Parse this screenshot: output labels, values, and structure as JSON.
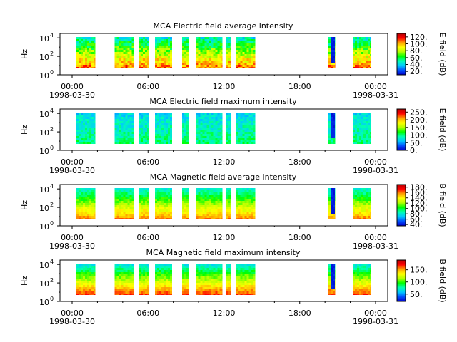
{
  "colors": {
    "colormap": [
      "#0000c8",
      "#0050ff",
      "#00c8ff",
      "#00ffb4",
      "#00ff00",
      "#b4ff00",
      "#ffff00",
      "#ffa000",
      "#ff0000",
      "#b40000"
    ]
  },
  "chart_data": [
    {
      "type": "heatmap",
      "title": "MCA  Electric field average intensity",
      "ylabel": "Hz",
      "y_ticks": [
        "10",
        "10",
        "10"
      ],
      "y_tick_exponents": [
        "0",
        "2",
        "4"
      ],
      "y_scale": "log",
      "ylim": [
        1,
        30000
      ],
      "x_ticks": [
        "00:00",
        "06:00",
        "12:00",
        "18:00",
        "00:00"
      ],
      "x_dates": [
        "1998-03-30",
        "1998-03-31"
      ],
      "xlim": [
        "1998-03-30 00:00",
        "1998-03-31 00:00"
      ],
      "colorbar": {
        "label": "E field (dB)",
        "ticks": [
          "20.",
          "40.",
          "60.",
          "80.",
          "100.",
          "120."
        ],
        "range": [
          10,
          130
        ]
      },
      "data_intervals_hours": [
        [
          1.2,
          2.6
        ],
        [
          4.0,
          5.4
        ],
        [
          5.75,
          6.5
        ],
        [
          6.95,
          8.2
        ],
        [
          8.95,
          9.45
        ],
        [
          9.95,
          11.9
        ],
        [
          12.15,
          12.5
        ],
        [
          12.9,
          14.3
        ],
        [
          19.65,
          20.15
        ],
        [
          21.45,
          22.75
        ]
      ],
      "description_levels": "mid-frequency dominated, high intensity at low frequencies"
    },
    {
      "type": "heatmap",
      "title": "MCA  Electric field maximum intensity",
      "ylabel": "Hz",
      "y_ticks": [
        "10",
        "10",
        "10"
      ],
      "y_tick_exponents": [
        "0",
        "2",
        "4"
      ],
      "y_scale": "log",
      "ylim": [
        1,
        30000
      ],
      "x_ticks": [
        "00:00",
        "06:00",
        "12:00",
        "18:00",
        "00:00"
      ],
      "x_dates": [
        "1998-03-30",
        "1998-03-31"
      ],
      "xlim": [
        "1998-03-30 00:00",
        "1998-03-31 00:00"
      ],
      "colorbar": {
        "label": "E field (dB)",
        "ticks": [
          "0.",
          "50.",
          "100.",
          "150.",
          "200.",
          "250."
        ],
        "range": [
          0,
          270
        ]
      },
      "data_intervals_hours": [
        [
          1.2,
          2.6
        ],
        [
          4.0,
          5.4
        ],
        [
          5.75,
          6.5
        ],
        [
          6.95,
          8.2
        ],
        [
          8.95,
          9.45
        ],
        [
          9.95,
          11.9
        ],
        [
          12.15,
          12.5
        ],
        [
          12.9,
          14.3
        ],
        [
          19.65,
          20.15
        ],
        [
          21.45,
          22.75
        ]
      ]
    },
    {
      "type": "heatmap",
      "title": "MCA  Magnetic field average intensity",
      "ylabel": "Hz",
      "y_ticks": [
        "10",
        "10",
        "10"
      ],
      "y_tick_exponents": [
        "0",
        "2",
        "4"
      ],
      "y_scale": "log",
      "ylim": [
        1,
        30000
      ],
      "x_ticks": [
        "00:00",
        "06:00",
        "12:00",
        "18:00",
        "00:00"
      ],
      "x_dates": [
        "1998-03-30",
        "1998-03-31"
      ],
      "xlim": [
        "1998-03-30 00:00",
        "1998-03-31 00:00"
      ],
      "colorbar": {
        "label": "B field (dB)",
        "ticks": [
          "40.",
          "60.",
          "80.",
          "100.",
          "120.",
          "140.",
          "160.",
          "180."
        ],
        "range": [
          35,
          190
        ]
      },
      "data_intervals_hours": [
        [
          1.2,
          2.6
        ],
        [
          4.0,
          5.4
        ],
        [
          5.75,
          6.5
        ],
        [
          6.95,
          8.2
        ],
        [
          8.95,
          9.45
        ],
        [
          9.95,
          11.9
        ],
        [
          12.15,
          12.5
        ],
        [
          12.9,
          14.3
        ],
        [
          19.65,
          20.15
        ],
        [
          21.45,
          22.75
        ]
      ]
    },
    {
      "type": "heatmap",
      "title": "MCA  Magnetic field maximum intensity",
      "ylabel": "Hz",
      "y_ticks": [
        "10",
        "10",
        "10"
      ],
      "y_tick_exponents": [
        "0",
        "2",
        "4"
      ],
      "y_scale": "log",
      "ylim": [
        1,
        30000
      ],
      "x_ticks": [
        "00:00",
        "06:00",
        "12:00",
        "18:00",
        "00:00"
      ],
      "x_dates": [
        "1998-03-30",
        "1998-03-31"
      ],
      "xlim": [
        "1998-03-30 00:00",
        "1998-03-31 00:00"
      ],
      "colorbar": {
        "label": "B field (dB)",
        "ticks": [
          "50.",
          "100.",
          "150."
        ],
        "range": [
          20,
          190
        ]
      },
      "data_intervals_hours": [
        [
          1.2,
          2.6
        ],
        [
          4.0,
          5.4
        ],
        [
          5.75,
          6.5
        ],
        [
          6.95,
          8.2
        ],
        [
          8.95,
          9.45
        ],
        [
          9.95,
          11.9
        ],
        [
          12.15,
          12.5
        ],
        [
          12.9,
          14.3
        ],
        [
          19.65,
          20.15
        ],
        [
          21.45,
          22.75
        ]
      ]
    }
  ]
}
